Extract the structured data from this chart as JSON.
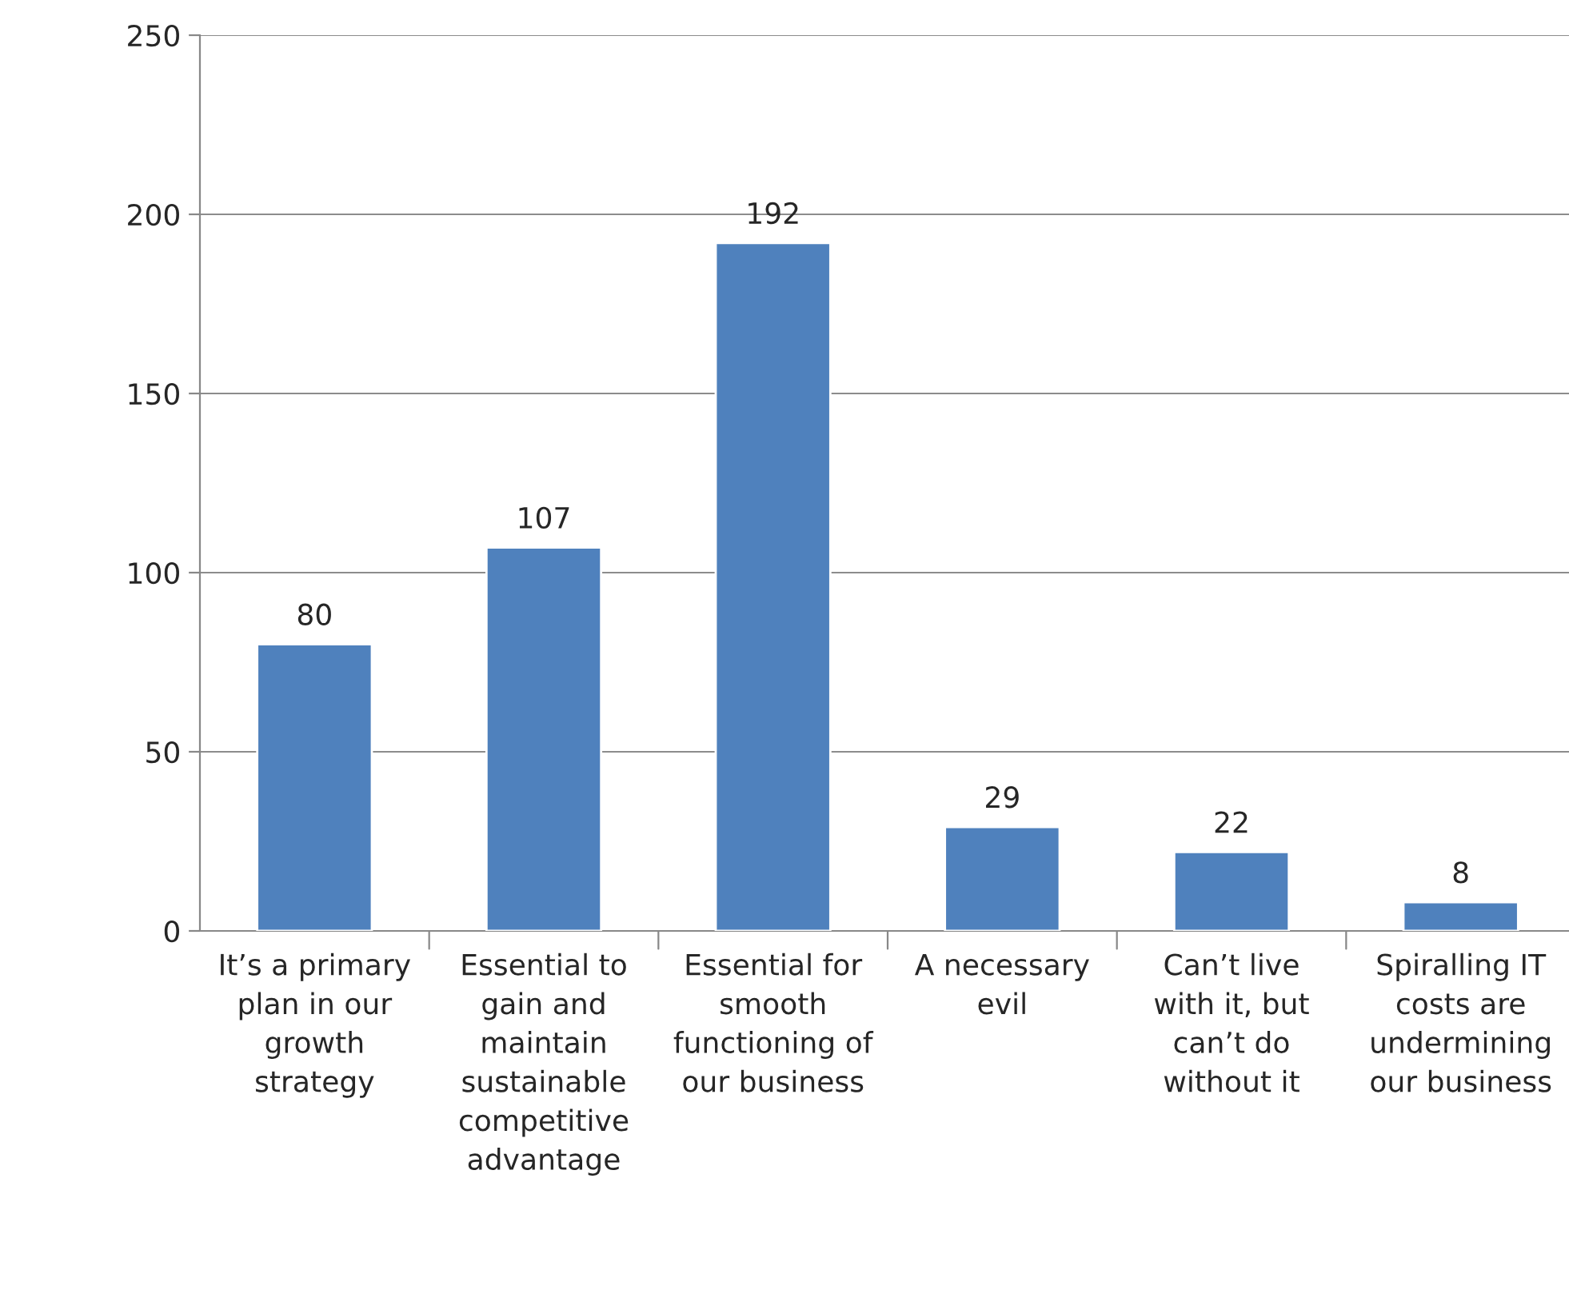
{
  "chart_data": {
    "type": "bar",
    "categories": [
      "It’s a primary\nplan in our\ngrowth\nstrategy",
      "Essential to\ngain and\nmaintain\nsustainable\ncompetitive\nadvantage",
      "Essential for\nsmooth\nfunctioning of\nour business",
      "A necessary\nevil",
      "Can’t live\nwith it, but\ncan’t do\nwithout it",
      "Spiralling IT\ncosts are\nundermining\nour business"
    ],
    "values": [
      80,
      107,
      192,
      29,
      22,
      8
    ],
    "color": "#4f81bd",
    "ylim": [
      0,
      250
    ],
    "yticks": [
      0,
      50,
      100,
      150,
      200,
      250
    ],
    "grid": "y",
    "data_labels": true
  }
}
